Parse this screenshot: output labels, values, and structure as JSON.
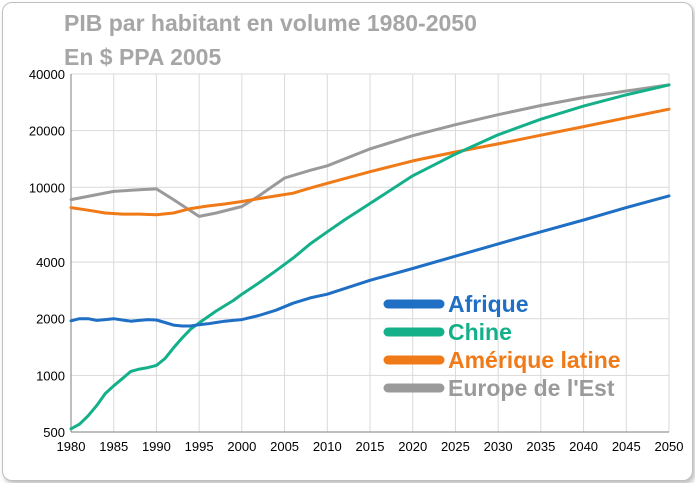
{
  "chart_data": {
    "type": "line",
    "title": "PIB par habitant en volume 1980-2050",
    "subtitle": "En $ PPA 2005",
    "xlabel": "",
    "ylabel": "",
    "yscale": "log",
    "ylim": [
      500,
      40000
    ],
    "xlim": [
      1980,
      2050
    ],
    "grid": true,
    "legend_position": "center-right",
    "x_ticks": [
      "1980",
      "1985",
      "1990",
      "1995",
      "2000",
      "2005",
      "2010",
      "2015",
      "2020",
      "2025",
      "2030",
      "2035",
      "2040",
      "2045",
      "2050"
    ],
    "y_ticks": [
      "500",
      "1000",
      "2000",
      "4000",
      "10000",
      "20000",
      "40000"
    ],
    "series": [
      {
        "name": "Afrique",
        "color": "#1f6fc5",
        "x": [
          1980,
          1981,
          1982,
          1983,
          1984,
          1985,
          1986,
          1987,
          1988,
          1989,
          1990,
          1991,
          1992,
          1993,
          1994,
          1995,
          1996,
          1997,
          1998,
          1999,
          2000,
          2002,
          2004,
          2006,
          2008,
          2010,
          2015,
          2020,
          2025,
          2030,
          2035,
          2040,
          2045,
          2050
        ],
        "values": [
          1950,
          2000,
          2000,
          1960,
          1980,
          2000,
          1970,
          1940,
          1960,
          1980,
          1970,
          1910,
          1850,
          1830,
          1830,
          1860,
          1880,
          1910,
          1940,
          1960,
          1980,
          2080,
          2220,
          2420,
          2580,
          2700,
          3200,
          3700,
          4300,
          5000,
          5800,
          6700,
          7800,
          9000
        ]
      },
      {
        "name": "Chine",
        "color": "#14b08a",
        "x": [
          1980,
          1981,
          1982,
          1983,
          1984,
          1985,
          1986,
          1987,
          1988,
          1989,
          1990,
          1991,
          1992,
          1993,
          1994,
          1995,
          1997,
          1999,
          2000,
          2002,
          2004,
          2006,
          2008,
          2010,
          2012,
          2015,
          2020,
          2025,
          2030,
          2035,
          2040,
          2045,
          2050
        ],
        "values": [
          520,
          550,
          610,
          690,
          800,
          880,
          960,
          1050,
          1080,
          1100,
          1130,
          1230,
          1400,
          1580,
          1760,
          1900,
          2200,
          2500,
          2700,
          3100,
          3600,
          4200,
          5000,
          5800,
          6700,
          8200,
          11500,
          15000,
          19000,
          23000,
          27000,
          31000,
          35000
        ]
      },
      {
        "name": "Amérique latine",
        "color": "#f07a17",
        "x": [
          1980,
          1982,
          1984,
          1986,
          1988,
          1990,
          1992,
          1994,
          1996,
          1998,
          2000,
          2002,
          2004,
          2006,
          2008,
          2010,
          2015,
          2020,
          2025,
          2030,
          2035,
          2040,
          2045,
          2050
        ],
        "values": [
          7800,
          7550,
          7300,
          7200,
          7200,
          7150,
          7300,
          7700,
          7950,
          8150,
          8400,
          8700,
          9000,
          9300,
          9900,
          10500,
          12100,
          13800,
          15400,
          17000,
          18900,
          21000,
          23400,
          26000
        ]
      },
      {
        "name": "Europe de l'Est",
        "color": "#9a9a9a",
        "x": [
          1980,
          1985,
          1988,
          1990,
          1992,
          1995,
          1997,
          2000,
          2002,
          2005,
          2008,
          2010,
          2015,
          2020,
          2025,
          2030,
          2035,
          2040,
          2045,
          2050
        ],
        "values": [
          8600,
          9500,
          9700,
          9800,
          8600,
          7000,
          7300,
          7900,
          9000,
          11200,
          12300,
          13000,
          16000,
          18800,
          21500,
          24300,
          27200,
          30000,
          32500,
          35000
        ]
      }
    ]
  }
}
